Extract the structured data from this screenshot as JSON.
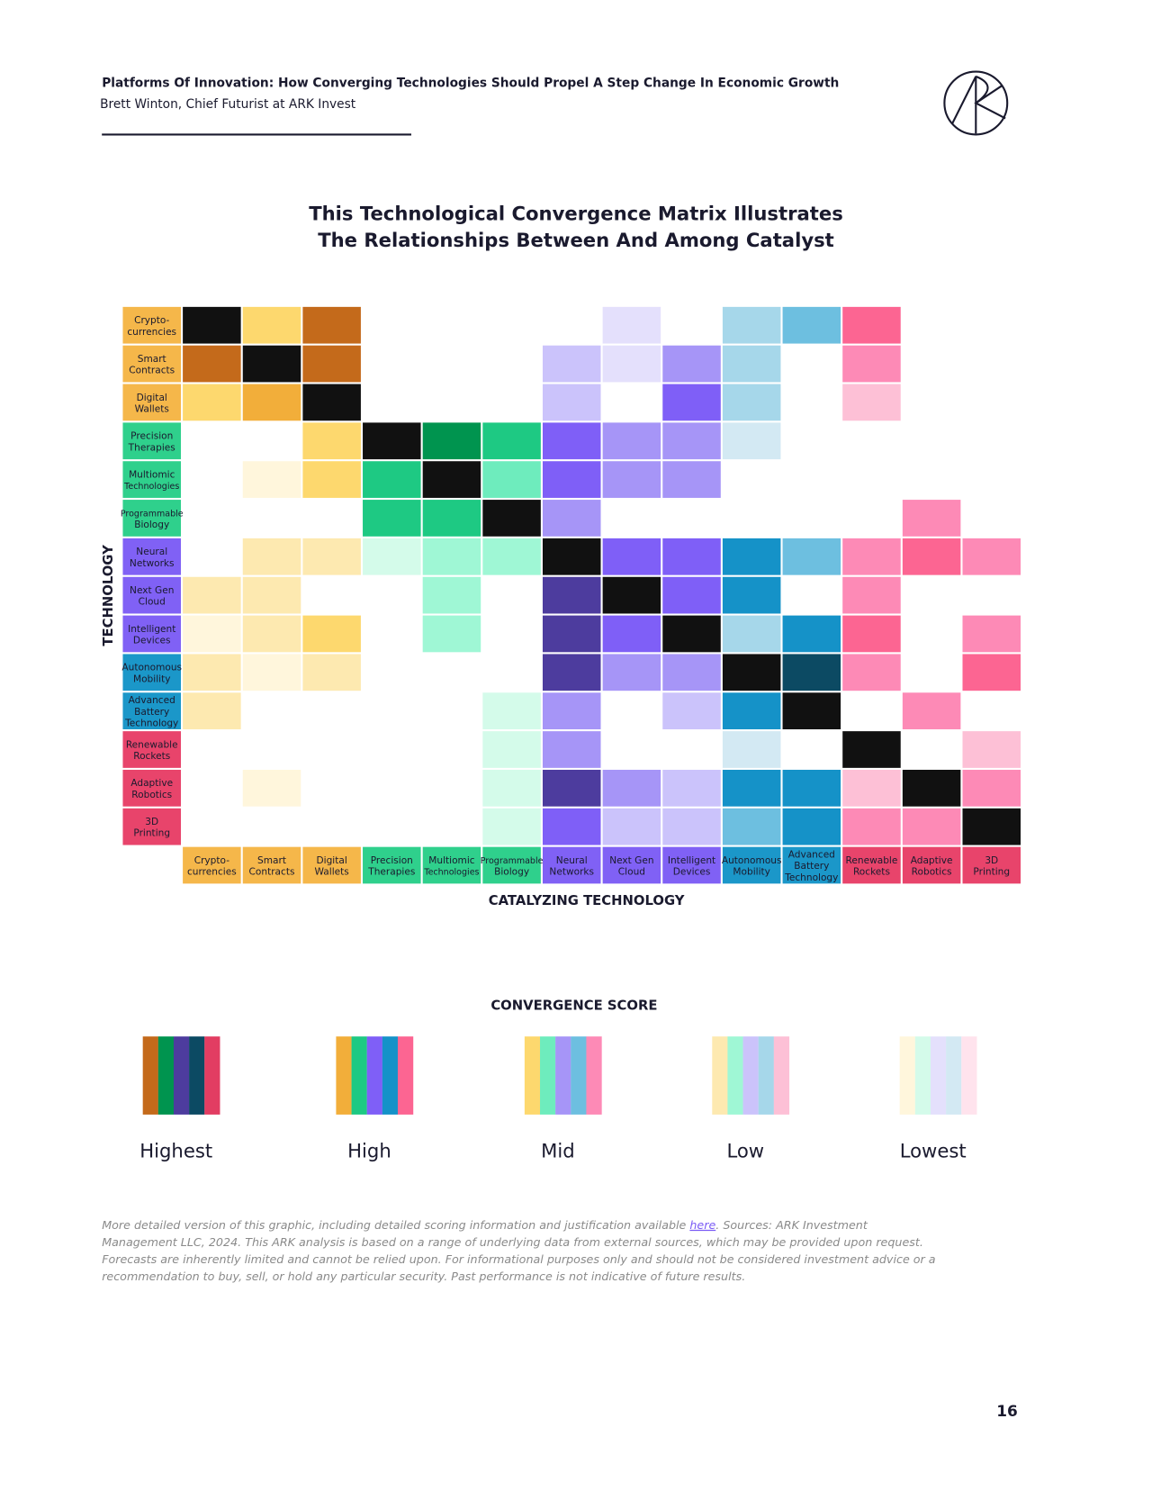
{
  "header": {
    "title": "Platforms Of Innovation: How Converging Technologies Should Propel A Step Change In Economic Growth",
    "author": "Brett Winton, Chief Futurist at ARK Invest",
    "page_number": 16
  },
  "chart": {
    "title_lines": [
      "This Technological Convergence Matrix Illustrates",
      "The Relationships Between And Among Catalyst"
    ],
    "y_axis_label": "TECHNOLOGY",
    "x_axis_label": "CATALYZING TECHNOLOGY",
    "technologies": [
      {
        "label": [
          "Crypto-",
          "currencies"
        ],
        "color": "#f5b74a",
        "shades": [
          "#c46a1b",
          "#f2ae3a",
          "#fdd86e",
          "#fde9b0",
          "#fff6dc"
        ]
      },
      {
        "label": [
          "Smart",
          "Contracts"
        ],
        "color": "#f5b74a",
        "shades": [
          "#c46a1b",
          "#f2ae3a",
          "#fdd86e",
          "#fde9b0",
          "#fff6dc"
        ]
      },
      {
        "label": [
          "Digital",
          "Wallets"
        ],
        "color": "#f5b74a",
        "shades": [
          "#c46a1b",
          "#f2ae3a",
          "#fdd86e",
          "#fde9b0",
          "#fff6dc"
        ]
      },
      {
        "label": [
          "Precision",
          "Therapies"
        ],
        "color": "#2fd08c",
        "shades": [
          "#00944f",
          "#1ec983",
          "#6eecbd",
          "#9ff7d5",
          "#d4fbea"
        ]
      },
      {
        "label": [
          "Multiomic",
          "Technologies"
        ],
        "color": "#2fd08c",
        "shades": [
          "#00944f",
          "#1ec983",
          "#6eecbd",
          "#9ff7d5",
          "#d4fbea"
        ]
      },
      {
        "label": [
          "Programmable",
          "Biology"
        ],
        "color": "#2fd08c",
        "shades": [
          "#00944f",
          "#1ec983",
          "#6eecbd",
          "#9ff7d5",
          "#d4fbea"
        ]
      },
      {
        "label": [
          "Neural",
          "Networks"
        ],
        "color": "#8061f5",
        "shades": [
          "#4d3c9e",
          "#7f5ff7",
          "#a695f7",
          "#cbc3fb",
          "#e4e0fc"
        ]
      },
      {
        "label": [
          "Next Gen",
          "Cloud"
        ],
        "color": "#8061f5",
        "shades": [
          "#4d3c9e",
          "#7f5ff7",
          "#a695f7",
          "#cbc3fb",
          "#e4e0fc"
        ]
      },
      {
        "label": [
          "Intelligent",
          "Devices"
        ],
        "color": "#8061f5",
        "shades": [
          "#4d3c9e",
          "#7f5ff7",
          "#a695f7",
          "#cbc3fb",
          "#e4e0fc"
        ]
      },
      {
        "label": [
          "Autonomous",
          "Mobility"
        ],
        "color": "#1b97c9",
        "shades": [
          "#0c4a63",
          "#1592c8",
          "#6dbfe0",
          "#a6d7ea",
          "#d3e9f3"
        ]
      },
      {
        "label": [
          "Advanced",
          "Battery",
          "Technology"
        ],
        "color": "#1b97c9",
        "shades": [
          "#0c4a63",
          "#1592c8",
          "#6dbfe0",
          "#a6d7ea",
          "#d3e9f3"
        ]
      },
      {
        "label": [
          "Renewable",
          "Rockets"
        ],
        "color": "#e8446b",
        "shades": [
          "#e23d62",
          "#fc6592",
          "#fd8ab6",
          "#fdc0d6",
          "#ffe3ed"
        ]
      },
      {
        "label": [
          "Adaptive",
          "Robotics"
        ],
        "color": "#e8446b",
        "shades": [
          "#e23d62",
          "#fc6592",
          "#fd8ab6",
          "#fdc0d6",
          "#ffe3ed"
        ]
      },
      {
        "label": [
          "3D",
          "Printing"
        ],
        "color": "#e8446b",
        "shades": [
          "#e23d62",
          "#fc6592",
          "#fd8ab6",
          "#fdc0d6",
          "#ffe3ed"
        ]
      }
    ],
    "cells": [
      [
        null,
        "Mid",
        "Highest",
        null,
        null,
        null,
        null,
        "Lowest",
        null,
        "Low",
        "Mid",
        "High",
        null,
        null
      ],
      [
        "Highest",
        null,
        "Highest",
        null,
        null,
        null,
        "Low",
        "Lowest",
        "Mid",
        "Low",
        null,
        "Mid",
        null,
        null
      ],
      [
        "Mid",
        "High",
        null,
        null,
        null,
        null,
        "Low",
        null,
        "High",
        "Low",
        null,
        "Low",
        null,
        null
      ],
      [
        null,
        null,
        "Mid",
        null,
        "Highest",
        "High",
        "High",
        "Mid",
        "Mid",
        "Lowest",
        null,
        null,
        null,
        null
      ],
      [
        null,
        "Lowest",
        "Mid",
        "High",
        null,
        "Mid",
        "High",
        "Mid",
        "Mid",
        null,
        null,
        null,
        null,
        null
      ],
      [
        null,
        null,
        null,
        "High",
        "High",
        null,
        "Mid",
        null,
        null,
        null,
        null,
        null,
        "Mid",
        null
      ],
      [
        null,
        "Low",
        "Low",
        "Lowest",
        "Low",
        "Low",
        null,
        "High",
        "High",
        "High",
        "Mid",
        "Mid",
        "High",
        "Mid"
      ],
      [
        "Low",
        "Low",
        null,
        null,
        "Low",
        null,
        "Highest",
        null,
        "High",
        "High",
        null,
        "Mid",
        null,
        null
      ],
      [
        "Lowest",
        "Low",
        "Mid",
        null,
        "Low",
        null,
        "Highest",
        "High",
        null,
        "Low",
        "High",
        "High",
        null,
        "Mid"
      ],
      [
        "Low",
        "Lowest",
        "Low",
        null,
        null,
        null,
        "Highest",
        "Mid",
        "Mid",
        null,
        "Highest",
        "Mid",
        null,
        "High"
      ],
      [
        "Low",
        null,
        null,
        null,
        null,
        "Lowest",
        "Mid",
        null,
        "Low",
        "High",
        null,
        null,
        "Mid",
        null
      ],
      [
        null,
        null,
        null,
        null,
        null,
        "Lowest",
        "Mid",
        null,
        null,
        "Lowest",
        null,
        null,
        null,
        "Low"
      ],
      [
        null,
        "Lowest",
        null,
        null,
        null,
        "Lowest",
        "Highest",
        "Mid",
        "Low",
        "High",
        "High",
        "Low",
        null,
        "Mid"
      ],
      [
        null,
        null,
        null,
        null,
        null,
        "Lowest",
        "High",
        "Low",
        "Low",
        "Mid",
        "High",
        "Mid",
        "Mid",
        null
      ]
    ],
    "self_color": "#111111",
    "legend": {
      "title": "CONVERGENCE SCORE",
      "levels": [
        "Highest",
        "High",
        "Mid",
        "Low",
        "Lowest"
      ]
    }
  },
  "footer": {
    "lines": [
      [
        "More detailed version of this graphic, including detailed scoring information and justification available ",
        "here",
        ". Sources: ARK Investment"
      ],
      [
        "Management LLC, 2024. This ARK analysis is based on a range of underlying data from external sources, which may be provided upon request."
      ],
      [
        "Forecasts are inherently limited and cannot be relied upon. For informational purposes only and should not be considered investment advice or a"
      ],
      [
        "recommendation to buy, sell, or hold any particular security. Past performance is not indicative of future results."
      ]
    ]
  }
}
